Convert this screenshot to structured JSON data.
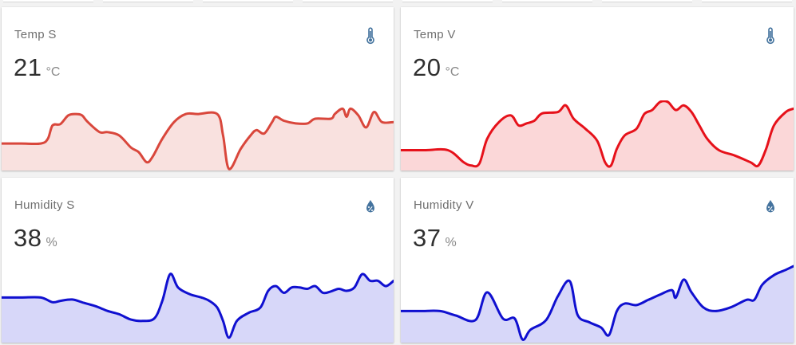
{
  "cards": [
    {
      "name": "Temp S",
      "value": "21",
      "unit": "°C",
      "icon": "thermometer-icon",
      "line_color": "#d9473c",
      "fill_color": "#f9e1df",
      "series": [
        [
          0,
          0.62
        ],
        [
          0.05,
          0.62
        ],
        [
          0.1,
          0.62
        ],
        [
          0.118,
          0.55
        ],
        [
          0.13,
          0.35
        ],
        [
          0.15,
          0.33
        ],
        [
          0.17,
          0.2
        ],
        [
          0.19,
          0.18
        ],
        [
          0.205,
          0.2
        ],
        [
          0.22,
          0.3
        ],
        [
          0.25,
          0.45
        ],
        [
          0.27,
          0.45
        ],
        [
          0.3,
          0.5
        ],
        [
          0.33,
          0.68
        ],
        [
          0.35,
          0.75
        ],
        [
          0.37,
          0.9
        ],
        [
          0.385,
          0.82
        ],
        [
          0.41,
          0.55
        ],
        [
          0.44,
          0.3
        ],
        [
          0.47,
          0.18
        ],
        [
          0.5,
          0.18
        ],
        [
          0.55,
          0.18
        ],
        [
          0.565,
          0.5
        ],
        [
          0.58,
          1.0
        ],
        [
          0.61,
          0.7
        ],
        [
          0.635,
          0.5
        ],
        [
          0.65,
          0.42
        ],
        [
          0.67,
          0.47
        ],
        [
          0.69,
          0.3
        ],
        [
          0.7,
          0.22
        ],
        [
          0.72,
          0.28
        ],
        [
          0.75,
          0.32
        ],
        [
          0.78,
          0.32
        ],
        [
          0.8,
          0.25
        ],
        [
          0.84,
          0.25
        ],
        [
          0.85,
          0.18
        ],
        [
          0.87,
          0.1
        ],
        [
          0.88,
          0.22
        ],
        [
          0.89,
          0.1
        ],
        [
          0.91,
          0.2
        ],
        [
          0.93,
          0.38
        ],
        [
          0.95,
          0.15
        ],
        [
          0.97,
          0.3
        ],
        [
          1.0,
          0.3
        ]
      ]
    },
    {
      "name": "Temp V",
      "value": "20",
      "unit": "°C",
      "icon": "thermometer-icon",
      "line_color": "#e6111a",
      "fill_color": "#fbd7d8",
      "series": [
        [
          0,
          0.72
        ],
        [
          0.06,
          0.72
        ],
        [
          0.12,
          0.72
        ],
        [
          0.16,
          0.9
        ],
        [
          0.18,
          0.95
        ],
        [
          0.2,
          0.92
        ],
        [
          0.22,
          0.55
        ],
        [
          0.25,
          0.3
        ],
        [
          0.28,
          0.2
        ],
        [
          0.3,
          0.35
        ],
        [
          0.32,
          0.32
        ],
        [
          0.34,
          0.28
        ],
        [
          0.36,
          0.17
        ],
        [
          0.4,
          0.15
        ],
        [
          0.42,
          0.05
        ],
        [
          0.44,
          0.25
        ],
        [
          0.47,
          0.4
        ],
        [
          0.5,
          0.58
        ],
        [
          0.52,
          0.9
        ],
        [
          0.535,
          0.95
        ],
        [
          0.55,
          0.7
        ],
        [
          0.57,
          0.5
        ],
        [
          0.6,
          0.4
        ],
        [
          0.62,
          0.18
        ],
        [
          0.64,
          0.12
        ],
        [
          0.66,
          0.0
        ],
        [
          0.68,
          0.0
        ],
        [
          0.7,
          0.12
        ],
        [
          0.72,
          0.05
        ],
        [
          0.74,
          0.15
        ],
        [
          0.76,
          0.35
        ],
        [
          0.78,
          0.55
        ],
        [
          0.81,
          0.72
        ],
        [
          0.85,
          0.8
        ],
        [
          0.89,
          0.9
        ],
        [
          0.91,
          0.95
        ],
        [
          0.93,
          0.7
        ],
        [
          0.95,
          0.35
        ],
        [
          0.98,
          0.15
        ],
        [
          1.0,
          0.1
        ]
      ]
    },
    {
      "name": "Humidity S",
      "value": "38",
      "unit": "%",
      "icon": "water-percent-icon",
      "line_color": "#1010d0",
      "fill_color": "#d7d7f9",
      "series": [
        [
          0,
          0.35
        ],
        [
          0.05,
          0.35
        ],
        [
          0.1,
          0.35
        ],
        [
          0.13,
          0.42
        ],
        [
          0.15,
          0.4
        ],
        [
          0.18,
          0.38
        ],
        [
          0.21,
          0.43
        ],
        [
          0.24,
          0.48
        ],
        [
          0.27,
          0.55
        ],
        [
          0.3,
          0.6
        ],
        [
          0.33,
          0.68
        ],
        [
          0.36,
          0.7
        ],
        [
          0.39,
          0.66
        ],
        [
          0.41,
          0.4
        ],
        [
          0.43,
          0.0
        ],
        [
          0.45,
          0.2
        ],
        [
          0.48,
          0.3
        ],
        [
          0.51,
          0.35
        ],
        [
          0.53,
          0.4
        ],
        [
          0.55,
          0.5
        ],
        [
          0.565,
          0.7
        ],
        [
          0.58,
          0.95
        ],
        [
          0.6,
          0.7
        ],
        [
          0.63,
          0.58
        ],
        [
          0.66,
          0.5
        ],
        [
          0.68,
          0.25
        ],
        [
          0.7,
          0.18
        ],
        [
          0.72,
          0.28
        ],
        [
          0.74,
          0.2
        ],
        [
          0.76,
          0.2
        ],
        [
          0.78,
          0.22
        ],
        [
          0.8,
          0.18
        ],
        [
          0.82,
          0.28
        ],
        [
          0.84,
          0.26
        ],
        [
          0.86,
          0.22
        ],
        [
          0.88,
          0.25
        ],
        [
          0.9,
          0.2
        ],
        [
          0.92,
          0.0
        ],
        [
          0.94,
          0.1
        ],
        [
          0.96,
          0.1
        ],
        [
          0.98,
          0.18
        ],
        [
          1.0,
          0.1
        ]
      ]
    },
    {
      "name": "Humidity V",
      "value": "37",
      "unit": "%",
      "icon": "water-percent-icon",
      "line_color": "#1010d0",
      "fill_color": "#d7d7f9",
      "series": [
        [
          0,
          0.6
        ],
        [
          0.05,
          0.6
        ],
        [
          0.1,
          0.6
        ],
        [
          0.14,
          0.66
        ],
        [
          0.19,
          0.72
        ],
        [
          0.22,
          0.35
        ],
        [
          0.26,
          0.7
        ],
        [
          0.29,
          0.7
        ],
        [
          0.31,
          0.98
        ],
        [
          0.33,
          0.85
        ],
        [
          0.37,
          0.72
        ],
        [
          0.4,
          0.4
        ],
        [
          0.43,
          0.2
        ],
        [
          0.45,
          0.65
        ],
        [
          0.48,
          0.75
        ],
        [
          0.51,
          0.82
        ],
        [
          0.53,
          0.92
        ],
        [
          0.55,
          0.6
        ],
        [
          0.57,
          0.5
        ],
        [
          0.6,
          0.52
        ],
        [
          0.63,
          0.45
        ],
        [
          0.66,
          0.38
        ],
        [
          0.69,
          0.32
        ],
        [
          0.7,
          0.42
        ],
        [
          0.72,
          0.18
        ],
        [
          0.74,
          0.35
        ],
        [
          0.77,
          0.55
        ],
        [
          0.8,
          0.6
        ],
        [
          0.84,
          0.55
        ],
        [
          0.88,
          0.45
        ],
        [
          0.9,
          0.45
        ],
        [
          0.92,
          0.25
        ],
        [
          0.95,
          0.12
        ],
        [
          0.98,
          0.05
        ],
        [
          1.0,
          0.0
        ]
      ]
    }
  ],
  "icon_color": "#44739e"
}
